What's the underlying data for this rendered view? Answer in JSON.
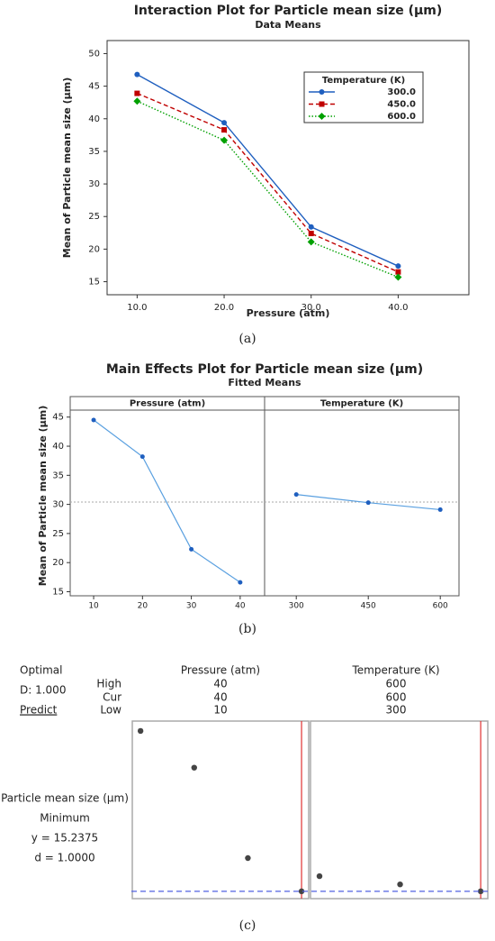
{
  "chart_data": [
    {
      "type": "line",
      "title": "Interaction Plot for Particle mean size (µm)",
      "subtitle": "Data Means",
      "x_label": "Pressure (atm)",
      "y_label": "Mean of Particle mean size (µm)",
      "categories": [
        "10.0",
        "20.0",
        "30.0",
        "40.0"
      ],
      "legend_title": "Temperature (K)",
      "legend_position": "upper right",
      "series": [
        {
          "name": "300.0",
          "color": "#1f5fbf",
          "style": "solid",
          "marker": "circle",
          "values": [
            46.8,
            39.4,
            23.4,
            17.4
          ]
        },
        {
          "name": "450.0",
          "color": "#c00000",
          "style": "dashed",
          "marker": "square",
          "values": [
            43.9,
            38.3,
            22.4,
            16.5
          ]
        },
        {
          "name": "600.0",
          "color": "#00a000",
          "style": "dotted",
          "marker": "diamond",
          "values": [
            42.7,
            36.7,
            21.1,
            15.7
          ]
        }
      ],
      "ylim": [
        13,
        52
      ],
      "yticks": [
        15,
        20,
        25,
        30,
        35,
        40,
        45,
        50
      ],
      "caption": "(a)"
    },
    {
      "type": "main_effects",
      "title": "Main Effects Plot for Particle mean size (µm)",
      "subtitle": "Fitted Means",
      "y_label": "Mean of Particle mean size (µm)",
      "line_color": "#5aa0e0",
      "point_color": "#1f5fbf",
      "reference_line": 30.4,
      "ylim": [
        14.3,
        46.2
      ],
      "yticks": [
        15,
        20,
        25,
        30,
        35,
        40,
        45
      ],
      "panels": [
        {
          "name": "Pressure (atm)",
          "x": [
            10,
            20,
            30,
            40
          ],
          "values": [
            44.5,
            38.2,
            22.3,
            16.6
          ],
          "xlim": [
            5.2,
            45.0
          ]
        },
        {
          "name": "Temperature (K)",
          "x": [
            300,
            450,
            600
          ],
          "values": [
            31.7,
            30.3,
            29.1
          ],
          "xlim": [
            234,
            639
          ]
        }
      ],
      "caption": "(b)"
    },
    {
      "type": "optimization",
      "title": "Optimal",
      "composite_d": 1.0,
      "composite_d_label": "D: 1.000",
      "action": "Predict",
      "row_labels": [
        "High",
        "Cur",
        "Low"
      ],
      "response": {
        "name": "Particle mean size (µm)",
        "goal": "Minimum",
        "y": 15.2375,
        "y_label": "y = 15.2375",
        "d": 1.0,
        "d_label": "d = 1.0000"
      },
      "ylim": [
        13.9,
        46.3
      ],
      "point_color": "#444444",
      "current_color": "#e03030",
      "target_color": "#5060e0",
      "panels": [
        {
          "name": "Pressure (atm)",
          "high": 40,
          "cur": 40,
          "low": 10,
          "x": [
            10,
            20,
            30,
            40
          ],
          "values": [
            44.5,
            37.8,
            21.3,
            15.24
          ],
          "xlim": [
            8.3,
            41.5
          ]
        },
        {
          "name": "Temperature (K)",
          "high": 600,
          "cur": 600,
          "low": 300,
          "x": [
            300,
            450,
            600
          ],
          "values": [
            18.0,
            16.5,
            15.24
          ],
          "xlim": [
            281.6,
            614.9
          ]
        }
      ],
      "caption": "(c)"
    }
  ]
}
